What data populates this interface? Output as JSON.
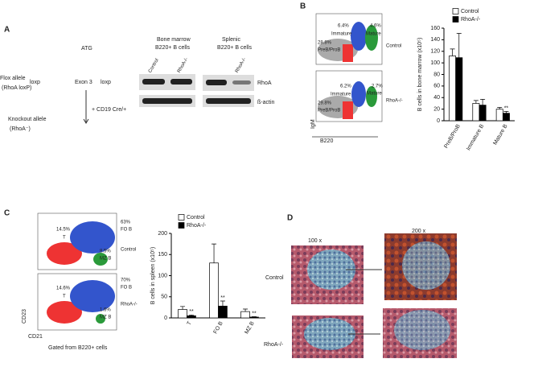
{
  "panels": {
    "a": {
      "label": "A",
      "atg": "ATG",
      "flox": "Flox allele",
      "flox_name": "(RhoA loxP)",
      "loxp_1": "loxp",
      "exon": "Exon 3",
      "loxp_2": "loxp",
      "cre": "+ CD19 Cre/+",
      "ko": "Knockout allele",
      "ko_name": "(RhoA⁻)",
      "bm_1": "Bone marrow",
      "bm_2": "B220+ B cells",
      "sp_1": "Splenic",
      "sp_2": "B220+ B cells",
      "lane_1": "Control",
      "lane_2": "RhoA-/-",
      "lane_3": "RhoA-/-",
      "band_1": "RhoA",
      "band_2": "ß-actin"
    },
    "b": {
      "label": "B",
      "top": [
        "6.4%",
        "Immature",
        "4.6%",
        "Mature",
        "28.8%",
        "PreB/ProB",
        "Control"
      ],
      "bottom": [
        "6.2%",
        "Immature",
        "2.7%",
        "Mature",
        "29.8%",
        "PreB/ProB",
        "RhoA-/-"
      ],
      "yaxis": "IgM",
      "xaxis": "B220"
    },
    "c": {
      "label": "C",
      "top": [
        "63%",
        "FO B",
        "14.5%",
        "T",
        "8.5%",
        "MZ B",
        "Control"
      ],
      "bottom": [
        "70%",
        "FO B",
        "14.6%",
        "T",
        "1.6%",
        "MZ B",
        "RhoA-/-"
      ],
      "yaxis": "CD23",
      "xaxis": "CD21",
      "note": "Gated from B220+ cells"
    },
    "d": {
      "label": "D",
      "mag_1": "100 x",
      "mag_2": "200 x",
      "row_1": "Control",
      "row_2": "RhoA-/-"
    }
  },
  "chart_data": [
    {
      "type": "bar",
      "ylabel": "B cells in bone marrow (x10⁵)",
      "categories": [
        "PreB/ProB",
        "Immature B",
        "Mature B"
      ],
      "series": [
        {
          "name": "Control",
          "color": "#ffffff",
          "values": [
            112,
            30,
            20
          ],
          "errors": [
            12,
            5,
            3
          ]
        },
        {
          "name": "RhoA-/-",
          "color": "#000000",
          "values": [
            109,
            27,
            13
          ],
          "errors": [
            42,
            10,
            3
          ],
          "significance": [
            null,
            null,
            "**"
          ]
        }
      ],
      "ylim": [
        0,
        160
      ],
      "yticks": [
        0,
        20,
        40,
        60,
        80,
        100,
        120,
        140,
        160
      ]
    },
    {
      "type": "bar",
      "ylabel": "B cells in spleen (x10⁵)",
      "categories": [
        "T",
        "FO B",
        "MZ B"
      ],
      "series": [
        {
          "name": "Control",
          "color": "#ffffff",
          "values": [
            20,
            130,
            15
          ],
          "errors": [
            7,
            45,
            6
          ]
        },
        {
          "name": "RhoA-/-",
          "color": "#000000",
          "values": [
            5,
            28,
            2
          ],
          "errors": [
            2,
            12,
            1
          ],
          "significance": [
            "**",
            "**",
            "**"
          ]
        }
      ],
      "ylim": [
        0,
        200
      ],
      "yticks": [
        0,
        50,
        100,
        150,
        200
      ]
    }
  ]
}
